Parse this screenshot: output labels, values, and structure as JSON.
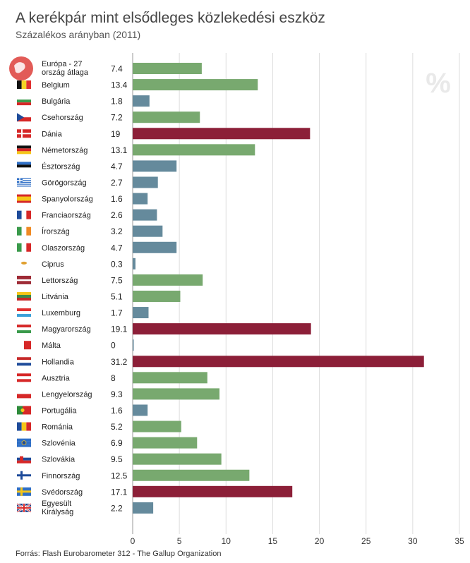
{
  "header": {
    "title": "A kerékpár mint elsődleges közlekedési eszköz",
    "subtitle": "Százalékos arányban (2011)"
  },
  "source": "Forrás: Flash Eurobarometer 312 - The Gallup Organization",
  "percent_sign": "%",
  "colors": {
    "green": "#78a96f",
    "blue": "#658a9c",
    "red": "#8c1f38",
    "grid": "#dddddd",
    "axis": "#999999"
  },
  "chart_data": {
    "type": "bar",
    "orientation": "horizontal",
    "title": "A kerékpár mint elsődleges közlekedési eszköz",
    "subtitle": "Százalékos arányban (2011)",
    "xlim": [
      0,
      35
    ],
    "xticks": [
      0,
      5,
      10,
      15,
      20,
      25,
      30,
      35
    ],
    "grid": true,
    "categories": [
      {
        "label": [
          "Európa - 27",
          "ország átlaga"
        ],
        "value": 7.4,
        "value_label": "7.4",
        "color": "green",
        "flag": "eu-icon"
      },
      {
        "label": [
          "Belgium"
        ],
        "value": 13.4,
        "value_label": "13.4",
        "color": "green",
        "flag": "flag-be-icon"
      },
      {
        "label": [
          "Bulgária"
        ],
        "value": 1.8,
        "value_label": "1.8",
        "color": "blue",
        "flag": "flag-bg-icon"
      },
      {
        "label": [
          "Csehország"
        ],
        "value": 7.2,
        "value_label": "7.2",
        "color": "green",
        "flag": "flag-cz-icon"
      },
      {
        "label": [
          "Dánia"
        ],
        "value": 19,
        "value_label": "19",
        "color": "red",
        "flag": "flag-dk-icon"
      },
      {
        "label": [
          "Németország"
        ],
        "value": 13.1,
        "value_label": "13.1",
        "color": "green",
        "flag": "flag-de-icon"
      },
      {
        "label": [
          "Észtország"
        ],
        "value": 4.7,
        "value_label": "4.7",
        "color": "blue",
        "flag": "flag-ee-icon"
      },
      {
        "label": [
          "Görögország"
        ],
        "value": 2.7,
        "value_label": "2.7",
        "color": "blue",
        "flag": "flag-gr-icon"
      },
      {
        "label": [
          "Spanyolország"
        ],
        "value": 1.6,
        "value_label": "1.6",
        "color": "blue",
        "flag": "flag-es-icon"
      },
      {
        "label": [
          "Franciaország"
        ],
        "value": 2.6,
        "value_label": "2.6",
        "color": "blue",
        "flag": "flag-fr-icon"
      },
      {
        "label": [
          "Írország"
        ],
        "value": 3.2,
        "value_label": "3.2",
        "color": "blue",
        "flag": "flag-ie-icon"
      },
      {
        "label": [
          "Olaszország"
        ],
        "value": 4.7,
        "value_label": "4.7",
        "color": "blue",
        "flag": "flag-it-icon"
      },
      {
        "label": [
          "Ciprus"
        ],
        "value": 0.3,
        "value_label": "0.3",
        "color": "blue",
        "flag": "flag-cy-icon"
      },
      {
        "label": [
          "Lettország"
        ],
        "value": 7.5,
        "value_label": "7.5",
        "color": "green",
        "flag": "flag-lv-icon"
      },
      {
        "label": [
          "Litvánia"
        ],
        "value": 5.1,
        "value_label": "5.1",
        "color": "green",
        "flag": "flag-lt-icon"
      },
      {
        "label": [
          "Luxemburg"
        ],
        "value": 1.7,
        "value_label": "1.7",
        "color": "blue",
        "flag": "flag-lu-icon"
      },
      {
        "label": [
          "Magyarország"
        ],
        "value": 19.1,
        "value_label": "19.1",
        "color": "red",
        "flag": "flag-hu-icon"
      },
      {
        "label": [
          "Málta"
        ],
        "value": 0,
        "value_label": "0",
        "color": "blue",
        "flag": "flag-mt-icon"
      },
      {
        "label": [
          "Hollandia"
        ],
        "value": 31.2,
        "value_label": "31.2",
        "color": "red",
        "flag": "flag-nl-icon"
      },
      {
        "label": [
          "Ausztria"
        ],
        "value": 8,
        "value_label": "8",
        "color": "green",
        "flag": "flag-at-icon"
      },
      {
        "label": [
          "Lengyelország"
        ],
        "value": 9.3,
        "value_label": "9.3",
        "color": "green",
        "flag": "flag-pl-icon"
      },
      {
        "label": [
          "Portugália"
        ],
        "value": 1.6,
        "value_label": "1.6",
        "color": "blue",
        "flag": "flag-pt-icon"
      },
      {
        "label": [
          "Románia"
        ],
        "value": 5.2,
        "value_label": "5.2",
        "color": "green",
        "flag": "flag-ro-icon"
      },
      {
        "label": [
          "Szlovénia"
        ],
        "value": 6.9,
        "value_label": "6.9",
        "color": "green",
        "flag": "flag-si-icon"
      },
      {
        "label": [
          "Szlovákia"
        ],
        "value": 9.5,
        "value_label": "9.5",
        "color": "green",
        "flag": "flag-sk-icon"
      },
      {
        "label": [
          "Finnország"
        ],
        "value": 12.5,
        "value_label": "12.5",
        "color": "green",
        "flag": "flag-fi-icon"
      },
      {
        "label": [
          "Svédország"
        ],
        "value": 17.1,
        "value_label": "17.1",
        "color": "red",
        "flag": "flag-se-icon"
      },
      {
        "label": [
          "Egyesült",
          "Királyság"
        ],
        "value": 2.2,
        "value_label": "2.2",
        "color": "blue",
        "flag": "flag-gb-icon"
      }
    ]
  }
}
